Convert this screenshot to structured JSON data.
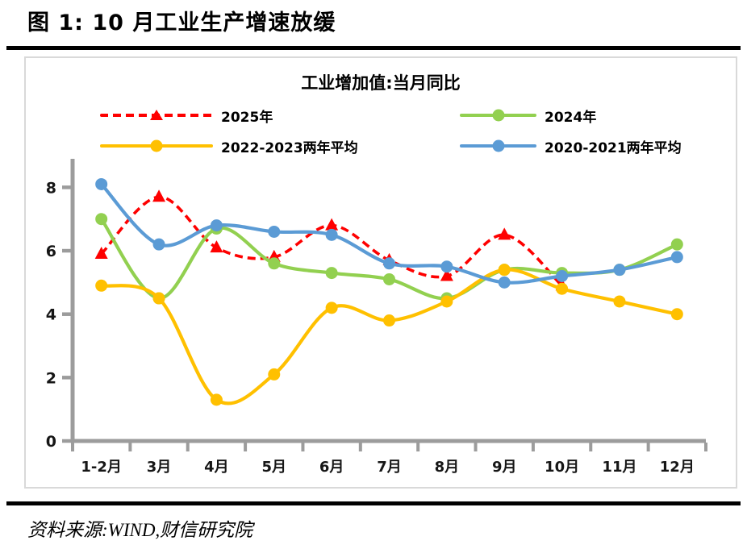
{
  "figure": {
    "title": "图 1: 10 月工业生产增速放缓"
  },
  "footer": {
    "source": "资料来源:WIND,财信研究院"
  },
  "chart_data": {
    "type": "line",
    "title": "工业增加值:当月同比",
    "categories": [
      "1-2月",
      "3月",
      "4月",
      "5月",
      "6月",
      "7月",
      "8月",
      "9月",
      "10月",
      "11月",
      "12月"
    ],
    "series": [
      {
        "name": "2025年",
        "color": "#fe0000",
        "line_style": "dashed",
        "marker": "triangle",
        "values": [
          5.9,
          7.7,
          6.1,
          5.8,
          6.8,
          5.7,
          5.2,
          6.5,
          4.9
        ]
      },
      {
        "name": "2024年",
        "color": "#92d050",
        "line_style": "solid",
        "marker": "circle",
        "values": [
          7.0,
          4.5,
          6.7,
          5.6,
          5.3,
          5.1,
          4.5,
          5.4,
          5.3,
          5.4,
          6.2
        ]
      },
      {
        "name": "2022-2023两年平均",
        "color": "#ffc000",
        "line_style": "solid",
        "marker": "circle",
        "values": [
          4.9,
          4.5,
          1.3,
          2.1,
          4.2,
          3.8,
          4.4,
          5.4,
          4.8,
          4.4,
          4.0
        ]
      },
      {
        "name": "2020-2021两年平均",
        "color": "#5b9bd5",
        "line_style": "solid",
        "marker": "circle",
        "values": [
          8.1,
          6.2,
          6.8,
          6.6,
          6.5,
          5.6,
          5.5,
          5.0,
          5.2,
          5.4,
          5.8
        ]
      }
    ],
    "xlabel": "",
    "ylabel": "",
    "ylim": [
      0,
      8.9
    ],
    "y_ticks": [
      0,
      2,
      4,
      6,
      8
    ],
    "grid": false,
    "smooth": true,
    "legend_position": "top",
    "axis_color": "#9c9c9c",
    "text_color": "#161616"
  }
}
